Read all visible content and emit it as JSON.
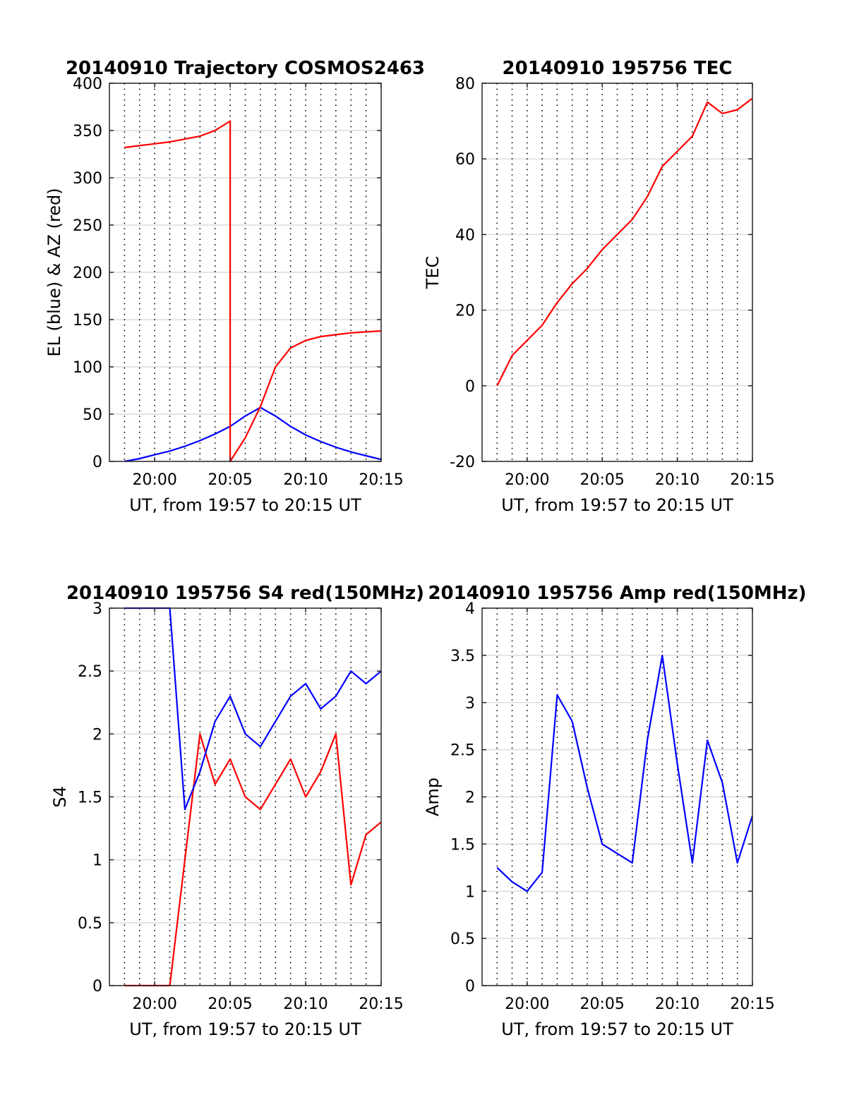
{
  "figure": {
    "panels": [
      {
        "title": "20140910 Trajectory COSMOS2463"
      },
      {
        "title": "20140910 195756 TEC"
      },
      {
        "title": "20140910 195756 S4 red(150MHz)"
      },
      {
        "title": "20140910 195756 Amp red(150MHz)"
      }
    ]
  },
  "chart_data": [
    {
      "type": "line",
      "title": "20140910 Trajectory COSMOS2463",
      "xlabel": "UT, from 19:57 to 20:15 UT",
      "ylabel": "EL (blue) & AZ (red)",
      "xlim": [
        "19:57",
        "20:15"
      ],
      "ylim": [
        0,
        400
      ],
      "xticks": [
        "20:00",
        "20:05",
        "20:10",
        "20:15"
      ],
      "yticks": [
        "0",
        "50",
        "100",
        "150",
        "200",
        "250",
        "300",
        "350",
        "400"
      ],
      "grid": true,
      "series": [
        {
          "color": "#0000ff",
          "x": [
            "19:58",
            "19:59",
            "20:00",
            "20:01",
            "20:02",
            "20:03",
            "20:04",
            "20:05",
            "20:06",
            "20:07",
            "20:08",
            "20:09",
            "20:10",
            "20:11",
            "20:12",
            "20:13",
            "20:14",
            "20:15"
          ],
          "y": [
            0,
            3,
            7,
            11,
            16,
            22,
            29,
            37,
            48,
            57,
            48,
            37,
            28,
            21,
            15,
            10,
            6,
            2
          ]
        },
        {
          "color": "#ff0000",
          "x": [
            "19:58",
            "19:59",
            "20:00",
            "20:01",
            "20:02",
            "20:03",
            "20:04",
            "20:05",
            "20:05",
            "20:06",
            "20:07",
            "20:08",
            "20:09",
            "20:10",
            "20:11",
            "20:12",
            "20:13",
            "20:14",
            "20:15"
          ],
          "y": [
            332,
            334,
            336,
            338,
            341,
            344,
            350,
            360,
            0,
            25,
            58,
            100,
            120,
            128,
            132,
            134,
            136,
            137,
            138
          ]
        }
      ]
    },
    {
      "type": "line",
      "title": "20140910 195756 TEC",
      "xlabel": "UT, from 19:57 to 20:15 UT",
      "ylabel": "TEC",
      "xlim": [
        "19:57",
        "20:15"
      ],
      "ylim": [
        -20,
        80
      ],
      "xticks": [
        "20:00",
        "20:05",
        "20:10",
        "20:15"
      ],
      "yticks": [
        "-20",
        "0",
        "20",
        "40",
        "60",
        "80"
      ],
      "grid": true,
      "series": [
        {
          "color": "#ff0000",
          "x": [
            "19:58",
            "19:59",
            "20:00",
            "20:01",
            "20:02",
            "20:03",
            "20:04",
            "20:05",
            "20:06",
            "20:07",
            "20:08",
            "20:09",
            "20:10",
            "20:11",
            "20:12",
            "20:13",
            "20:14",
            "20:15"
          ],
          "y": [
            0,
            8,
            12,
            16,
            22,
            27,
            31,
            36,
            40,
            44,
            50,
            58,
            62,
            66,
            75,
            72,
            73,
            76
          ]
        }
      ]
    },
    {
      "type": "line",
      "title": "20140910 195756 S4 red(150MHz)",
      "xlabel": "UT, from 19:57 to 20:15 UT",
      "ylabel": "S4",
      "xlim": [
        "19:57",
        "20:15"
      ],
      "ylim": [
        0,
        3
      ],
      "xticks": [
        "20:00",
        "20:05",
        "20:10",
        "20:15"
      ],
      "yticks": [
        "0",
        "0.5",
        "1",
        "1.5",
        "2",
        "2.5",
        "3"
      ],
      "grid": true,
      "series": [
        {
          "color": "#ff0000",
          "x": [
            "19:58",
            "19:59",
            "20:00",
            "20:01",
            "20:02",
            "20:03",
            "20:04",
            "20:05",
            "20:06",
            "20:07",
            "20:08",
            "20:09",
            "20:10",
            "20:11",
            "20:12",
            "20:13",
            "20:14",
            "20:15"
          ],
          "y": [
            0,
            0,
            0,
            0,
            1.0,
            2.0,
            1.6,
            1.8,
            1.5,
            1.4,
            1.6,
            1.8,
            1.5,
            1.7,
            2.0,
            0.8,
            1.2,
            1.3
          ]
        },
        {
          "color": "#0000ff",
          "x": [
            "19:58",
            "19:59",
            "20:00",
            "20:01",
            "20:02",
            "20:03",
            "20:04",
            "20:05",
            "20:06",
            "20:07",
            "20:08",
            "20:09",
            "20:10",
            "20:11",
            "20:12",
            "20:13",
            "20:14",
            "20:15"
          ],
          "y": [
            3,
            3,
            3,
            3,
            1.4,
            1.7,
            2.1,
            2.3,
            2.0,
            1.9,
            2.1,
            2.3,
            2.4,
            2.2,
            2.3,
            2.5,
            2.4,
            2.5
          ]
        }
      ]
    },
    {
      "type": "line",
      "title": "20140910 195756 Amp red(150MHz)",
      "xlabel": "UT, from 19:57 to 20:15 UT",
      "ylabel": "Amp",
      "xlim": [
        "19:57",
        "20:15"
      ],
      "ylim": [
        0,
        4
      ],
      "xticks": [
        "20:00",
        "20:05",
        "20:10",
        "20:15"
      ],
      "yticks": [
        "0",
        "0.5",
        "1",
        "1.5",
        "2",
        "2.5",
        "3",
        "3.5",
        "4"
      ],
      "grid": true,
      "series": [
        {
          "color": "#0000ff",
          "x": [
            "19:58",
            "19:59",
            "20:00",
            "20:01",
            "20:02",
            "20:03",
            "20:04",
            "20:05",
            "20:06",
            "20:07",
            "20:08",
            "20:09",
            "20:10",
            "20:11",
            "20:12",
            "20:13",
            "20:14",
            "20:15"
          ],
          "y": [
            1.25,
            1.1,
            1.0,
            1.2,
            3.08,
            2.8,
            2.1,
            1.5,
            1.4,
            1.3,
            2.6,
            3.5,
            2.35,
            1.3,
            2.6,
            2.15,
            1.3,
            1.8
          ]
        }
      ]
    }
  ]
}
